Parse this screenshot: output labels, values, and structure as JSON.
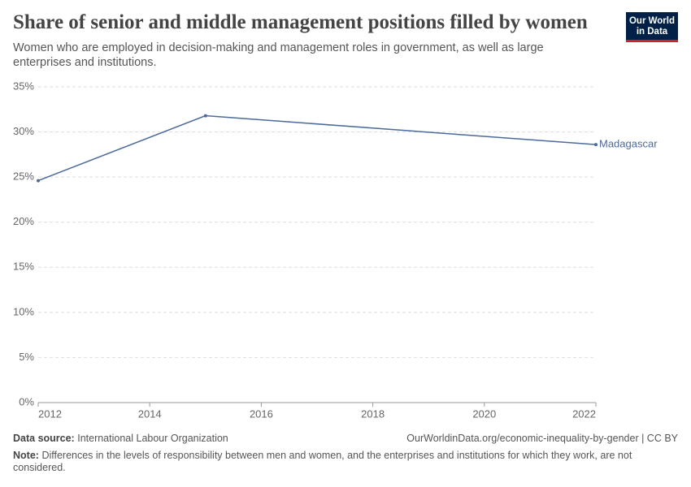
{
  "chart_data": {
    "type": "line",
    "title": "Share of senior and middle management positions filled by women",
    "subtitle": "Women who are employed in decision-making and management roles in government, as well as large enterprises and institutions.",
    "x": [
      2012,
      2015,
      2022
    ],
    "series": [
      {
        "name": "Madagascar",
        "color": "#4c6a9c",
        "values": [
          24.6,
          31.8,
          28.6
        ]
      }
    ],
    "xlim": [
      2012,
      2022
    ],
    "xticks": [
      2012,
      2014,
      2016,
      2018,
      2020,
      2022
    ],
    "ylim": [
      0,
      35
    ],
    "yticks": [
      {
        "value": 0,
        "label": "0%"
      },
      {
        "value": 5,
        "label": "5%"
      },
      {
        "value": 10,
        "label": "10%"
      },
      {
        "value": 15,
        "label": "15%"
      },
      {
        "value": 20,
        "label": "20%"
      },
      {
        "value": 25,
        "label": "25%"
      },
      {
        "value": 30,
        "label": "30%"
      },
      {
        "value": 35,
        "label": "35%"
      }
    ],
    "grid": true
  },
  "footer": {
    "source_label": "Data source:",
    "source": "International Labour Organization",
    "url": "OurWorldinData.org/economic-inequality-by-gender | CC BY",
    "note_label": "Note:",
    "note": "Differences in the levels of responsibility between men and women, and the enterprises and institutions for which they work, are not considered."
  },
  "logo": [
    "Our World",
    "in Data"
  ]
}
